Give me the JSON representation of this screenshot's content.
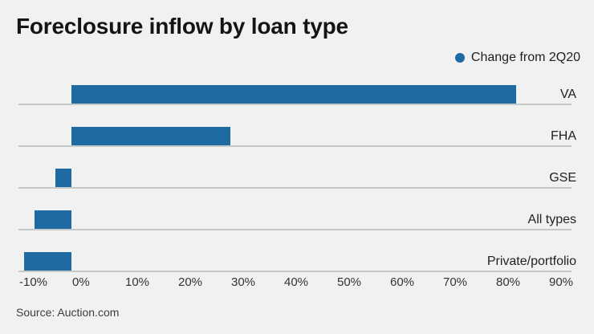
{
  "chart_data": {
    "type": "bar",
    "orientation": "horizontal",
    "title": "Foreclosure inflow by loan type",
    "legend": {
      "label": "Change from 2Q20",
      "position": "top-right"
    },
    "categories": [
      "VA",
      "FHA",
      "GSE",
      "All types",
      "Private/portfolio"
    ],
    "values": [
      84,
      30,
      -3,
      -7,
      -9
    ],
    "value_unit": "%",
    "xlabel": "",
    "ylabel": "",
    "xlim": [
      -10,
      90
    ],
    "x_ticks": [
      "-10%",
      "0%",
      "10%",
      "20%",
      "30%",
      "40%",
      "50%",
      "60%",
      "70%",
      "80%",
      "90%"
    ],
    "x_tick_values": [
      -10,
      0,
      10,
      20,
      30,
      40,
      50,
      60,
      70,
      80,
      90
    ],
    "grid": "horizontal-row-baselines-only",
    "colors": {
      "bar": "#1e6ba4",
      "background": "#f0f1f0",
      "baseline": "#c7c9c9",
      "text": "#222222"
    }
  },
  "source": "Source: Auction.com"
}
